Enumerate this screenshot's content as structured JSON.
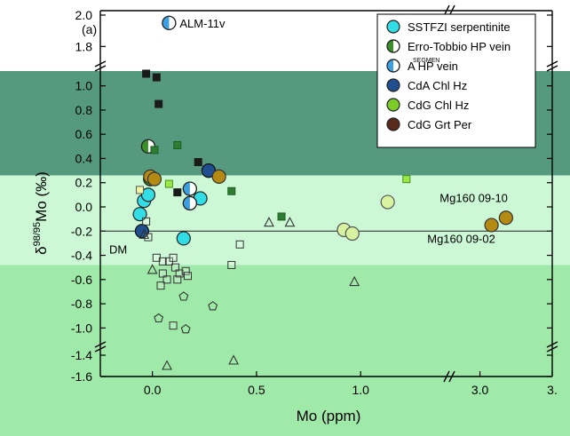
{
  "chart_data": {
    "type": "scatter",
    "panel_label": "(a)",
    "xlabel": "Mo (ppm)",
    "ylabel_main": "δ",
    "ylabel_sup": "98/95",
    "ylabel_tail": "Mo (‰)",
    "x_ticks": [
      {
        "label": "0.0",
        "value": 0.0
      },
      {
        "label": "0.5",
        "value": 0.5
      },
      {
        "label": "1.0",
        "value": 1.0
      },
      {
        "label": "3.0",
        "value": 3.0
      },
      {
        "label": "3.",
        "value": 3.5
      }
    ],
    "y_ticks": [
      {
        "label": "2.0",
        "value": 2.0
      },
      {
        "label": "1.8",
        "value": 1.8
      },
      {
        "label": "1.0",
        "value": 1.0
      },
      {
        "label": "0.8",
        "value": 0.8
      },
      {
        "label": "0.6",
        "value": 0.6
      },
      {
        "label": "0.4",
        "value": 0.4
      },
      {
        "label": "0.2",
        "value": 0.2
      },
      {
        "label": "0.0",
        "value": 0.0
      },
      {
        "label": "-0.2",
        "value": -0.2
      },
      {
        "label": "-0.4",
        "value": -0.4
      },
      {
        "label": "-0.6",
        "value": -0.6
      },
      {
        "label": "-0.8",
        "value": -0.8
      },
      {
        "label": "-1.0",
        "value": -1.0
      },
      {
        "label": "-1.4",
        "value": -1.4
      },
      {
        "label": "-1.6",
        "value": -1.6
      }
    ],
    "x_axis": {
      "segments": [
        [
          -0.25,
          1.4
        ],
        [
          2.8,
          3.5
        ]
      ],
      "breaks": [
        1.4
      ]
    },
    "y_axis": {
      "segments": [
        [
          -1.6,
          -1.35
        ],
        [
          -1.1,
          1.1
        ],
        [
          1.7,
          2.0
        ]
      ],
      "breaks": [
        -1.35,
        1.1
      ]
    },
    "reference_line": {
      "y": -0.2,
      "label": "DM"
    },
    "background_bands": [
      {
        "y_from": 0.26,
        "y_to": 1.2,
        "color": "#55997f"
      },
      {
        "y_from": -0.48,
        "y_to": 0.26,
        "color": "#ccf8d6"
      },
      {
        "y_from": -1.7,
        "y_to": -0.48,
        "color": "#9fe9a9"
      }
    ],
    "legend": [
      {
        "label": "SSTFZI serpentinite",
        "marker": "circle",
        "fill": "#33dde6",
        "fill2": null
      },
      {
        "label": "Erro-Tobbio HP vein",
        "marker": "half-circle",
        "fill": "#3a8f27",
        "fill2": "#ffffff"
      },
      {
        "label": "A HP vein",
        "marker": "half-circle",
        "fill": "#3b9fe0",
        "fill2": "#ffffff"
      },
      {
        "label": "CdA Chl Hz",
        "marker": "circle",
        "fill": "#1f4f8f",
        "fill2": null
      },
      {
        "label": "CdG Chl Hz",
        "marker": "circle",
        "fill": "#7ccc27",
        "fill2": null
      },
      {
        "label": "CdG Grt Per",
        "marker": "circle",
        "fill": "#5a2a1a",
        "fill2": null
      }
    ],
    "legend_extra_text": "SEGMEN",
    "annotations": [
      {
        "text": "ALM-11v",
        "x": 0.08,
        "y": 1.95
      },
      {
        "text": "Mg160 09-10",
        "x": 1.38,
        "y": 0.02
      },
      {
        "text": "Mg160 09-02",
        "x": 1.32,
        "y": -0.32
      }
    ],
    "series": [
      {
        "name": "SSTFZI serpentinite",
        "marker": "circle",
        "fill": "#33dde6",
        "stroke": "#222222",
        "points": [
          [
            -0.06,
            -0.06
          ],
          [
            -0.04,
            0.05
          ],
          [
            -0.02,
            0.1
          ],
          [
            0.23,
            0.07
          ],
          [
            0.15,
            -0.26
          ],
          [
            0.27,
            0.3
          ]
        ]
      },
      {
        "name": "Erro-Tobbio HP vein",
        "marker": "half-circle",
        "fill": "#3a8f27",
        "fill2": "#ffffff",
        "stroke": "#222222",
        "points": [
          [
            -0.02,
            0.5
          ],
          [
            -0.01,
            0.23
          ]
        ]
      },
      {
        "name": "A HP vein",
        "marker": "half-circle",
        "fill": "#3b9fe0",
        "fill2": "#ffffff",
        "stroke": "#222222",
        "points": [
          [
            0.08,
            1.95
          ],
          [
            0.18,
            0.15
          ],
          [
            0.18,
            0.03
          ]
        ]
      },
      {
        "name": "CdA Chl Hz",
        "marker": "circle",
        "fill": "#1f4f8f",
        "stroke": "#111111",
        "points": [
          [
            -0.05,
            -0.2
          ],
          [
            0.27,
            0.3
          ]
        ]
      },
      {
        "name": "CdG Chl Hz",
        "marker": "circle",
        "fill": "#d7f3a0",
        "stroke": "#555555",
        "points": [
          [
            0.92,
            -0.19
          ],
          [
            0.96,
            -0.22
          ],
          [
            1.13,
            0.04
          ]
        ]
      },
      {
        "name": "CdG Grt Per",
        "marker": "circle",
        "fill": "#b58a12",
        "stroke": "#333333",
        "points": [
          [
            -0.01,
            0.25
          ],
          [
            0.01,
            0.23
          ],
          [
            0.32,
            0.25
          ],
          [
            3.08,
            -0.15
          ],
          [
            3.18,
            -0.09
          ]
        ]
      },
      {
        "name": "",
        "marker": "square",
        "fill": "#1a1a1a",
        "stroke": "#1a1a1a",
        "points": [
          [
            -0.03,
            1.1
          ],
          [
            0.02,
            1.07
          ],
          [
            0.03,
            0.85
          ],
          [
            0.22,
            0.37
          ],
          [
            0.12,
            0.12
          ]
        ]
      },
      {
        "name": "",
        "marker": "square",
        "fill": "#2e7d32",
        "stroke": "#1b5e20",
        "points": [
          [
            0.01,
            0.47
          ],
          [
            0.12,
            0.51
          ],
          [
            0.38,
            0.13
          ],
          [
            0.62,
            -0.08
          ]
        ]
      },
      {
        "name": "",
        "marker": "square",
        "fill": "#99e84a",
        "stroke": "#4a8f1a",
        "points": [
          [
            0.08,
            0.19
          ],
          [
            1.22,
            0.23
          ]
        ]
      },
      {
        "name": "",
        "marker": "square",
        "fill": "#f2f7a8",
        "stroke": "#555555",
        "points": [
          [
            -0.06,
            0.14
          ]
        ]
      },
      {
        "name": "",
        "marker": "square-open",
        "fill": "none",
        "stroke": "#333333",
        "points": [
          [
            -0.03,
            -0.12
          ],
          [
            -0.02,
            -0.25
          ],
          [
            0.02,
            -0.42
          ],
          [
            0.05,
            -0.45
          ],
          [
            0.08,
            -0.45
          ],
          [
            0.1,
            -0.42
          ],
          [
            0.11,
            -0.5
          ],
          [
            0.13,
            -0.55
          ],
          [
            0.05,
            -0.55
          ],
          [
            0.07,
            -0.6
          ],
          [
            0.12,
            -0.6
          ],
          [
            0.16,
            -0.53
          ],
          [
            0.04,
            -0.65
          ],
          [
            0.1,
            -0.98
          ],
          [
            0.17,
            -0.57
          ],
          [
            0.42,
            -0.31
          ],
          [
            0.38,
            -0.48
          ]
        ]
      },
      {
        "name": "",
        "marker": "triangle-open",
        "fill": "none",
        "stroke": "#333333",
        "points": [
          [
            -0.04,
            -0.23
          ],
          [
            0.56,
            -0.13
          ],
          [
            0.66,
            -0.13
          ],
          [
            0.0,
            -0.52
          ],
          [
            0.97,
            -0.62
          ],
          [
            0.07,
            -1.5
          ],
          [
            0.39,
            -1.45
          ]
        ]
      },
      {
        "name": "",
        "marker": "pentagon-open",
        "fill": "none",
        "stroke": "#333333",
        "points": [
          [
            0.03,
            -0.92
          ],
          [
            0.15,
            -0.74
          ],
          [
            0.29,
            -0.82
          ],
          [
            0.16,
            -1.01
          ]
        ]
      }
    ]
  }
}
